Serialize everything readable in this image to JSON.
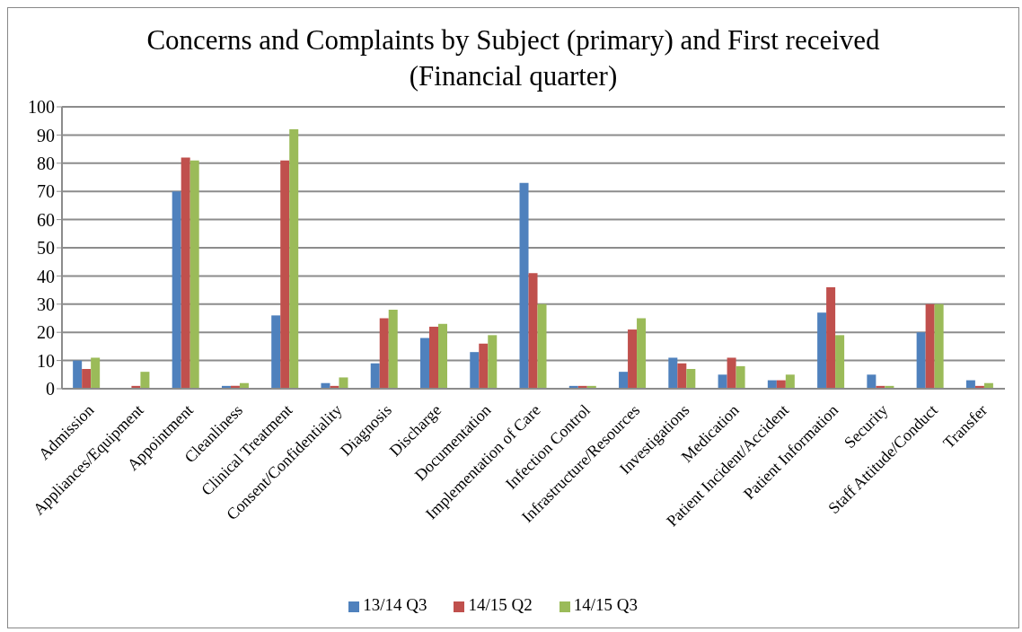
{
  "chart_data": {
    "type": "bar",
    "title": "Concerns  and Complaints by Subject (primary) and First received (Financial quarter)",
    "categories": [
      "Admission",
      "Appliances/Equipment",
      "Appointment",
      "Cleanliness",
      "Clinical Treatment",
      "Consent/Confidentiality",
      "Diagnosis",
      "Discharge",
      "Documentation",
      "Implementation of Care",
      "Infection Control",
      "Infrastructure/Resources",
      "Investigations",
      "Medication",
      "Patient Incident/Accident",
      "Patient Information",
      "Security",
      "Staff Attitude/Conduct",
      "Transfer"
    ],
    "series": [
      {
        "name": "13/14 Q3",
        "color": "#4f81bd",
        "values": [
          10,
          0,
          70,
          1,
          26,
          2,
          9,
          18,
          13,
          73,
          1,
          6,
          11,
          5,
          3,
          27,
          5,
          20,
          3
        ]
      },
      {
        "name": "14/15 Q2",
        "color": "#c0504d",
        "values": [
          7,
          1,
          82,
          1,
          81,
          1,
          25,
          22,
          16,
          41,
          1,
          21,
          9,
          11,
          3,
          36,
          1,
          30,
          1
        ]
      },
      {
        "name": "14/15 Q3",
        "color": "#9bbb59",
        "values": [
          11,
          6,
          81,
          2,
          92,
          4,
          28,
          23,
          19,
          30,
          1,
          25,
          7,
          8,
          5,
          19,
          1,
          30,
          2
        ]
      }
    ],
    "ylim": [
      0,
      100
    ],
    "yticks": [
      0,
      10,
      20,
      30,
      40,
      50,
      60,
      70,
      80,
      90,
      100
    ],
    "grid": "y",
    "legend": "bottom"
  }
}
